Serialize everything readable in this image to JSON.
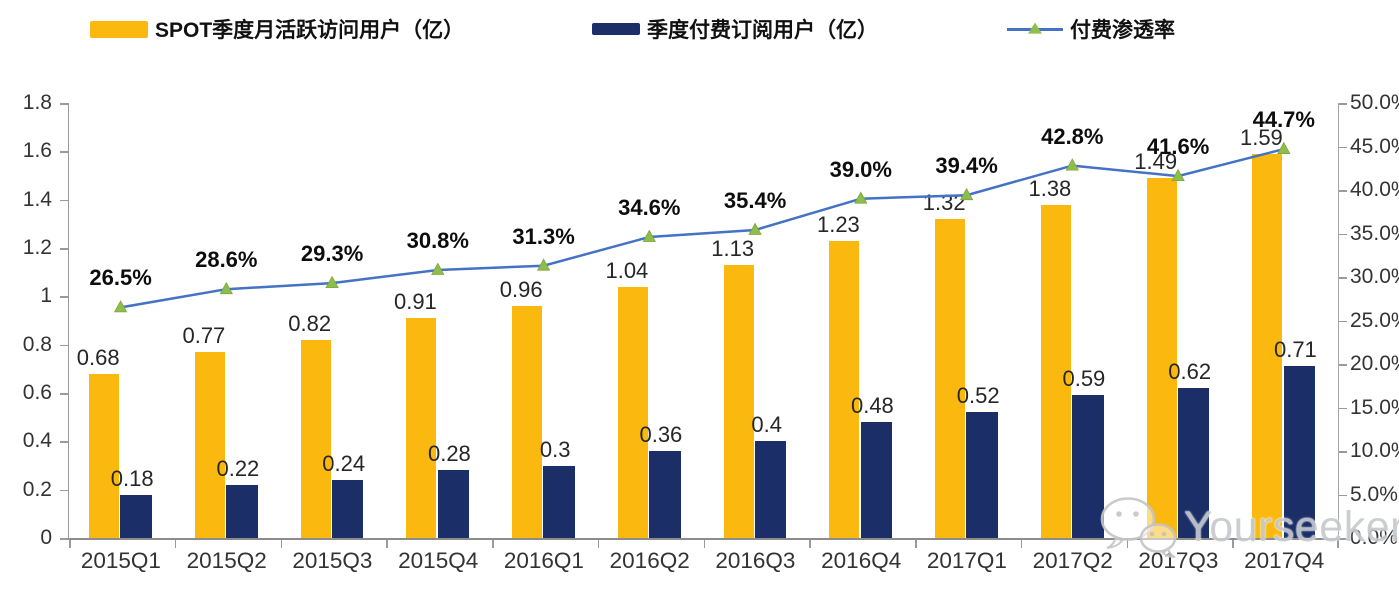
{
  "legend": {
    "items": [
      {
        "label": "SPOT季度月活跃访问用户（亿）",
        "swatch": "bar",
        "color": "#FBB90F"
      },
      {
        "label": "季度付费订阅用户（亿）",
        "swatch": "bar",
        "color": "#1B2E68"
      },
      {
        "label": "付费渗透率",
        "swatch": "line",
        "color": "#4472C4",
        "marker_color": "#8DBE4C"
      }
    ]
  },
  "chart_data": {
    "type": "bar",
    "subtype": "grouped-bar-with-line-combo",
    "title": "",
    "grid": false,
    "legend_position": "top",
    "categories": [
      "2015Q1",
      "2015Q2",
      "2015Q3",
      "2015Q4",
      "2016Q1",
      "2016Q2",
      "2016Q3",
      "2016Q4",
      "2017Q1",
      "2017Q2",
      "2017Q3",
      "2017Q4"
    ],
    "series": [
      {
        "name": "SPOT季度月活跃访问用户（亿）",
        "type": "bar",
        "axis": "left",
        "color": "#FBB90F",
        "values": [
          0.68,
          0.77,
          0.82,
          0.91,
          0.96,
          1.04,
          1.13,
          1.23,
          1.32,
          1.38,
          1.49,
          1.59
        ],
        "value_labels": [
          "0.68",
          "0.77",
          "0.82",
          "0.91",
          "0.96",
          "1.04",
          "1.13",
          "1.23",
          "1.32",
          "1.38",
          "1.49",
          "1.59"
        ]
      },
      {
        "name": "季度付费订阅用户（亿）",
        "type": "bar",
        "axis": "left",
        "color": "#1B2E68",
        "values": [
          0.18,
          0.22,
          0.24,
          0.28,
          0.3,
          0.36,
          0.4,
          0.48,
          0.52,
          0.59,
          0.62,
          0.71
        ],
        "value_labels": [
          "0.18",
          "0.22",
          "0.24",
          "0.28",
          "0.3",
          "0.36",
          "0.4",
          "0.48",
          "0.52",
          "0.59",
          "0.62",
          "0.71"
        ]
      },
      {
        "name": "付费渗透率",
        "type": "line",
        "axis": "right",
        "color": "#4472C4",
        "marker": "triangle",
        "marker_color": "#8DBE4C",
        "values": [
          26.5,
          28.6,
          29.3,
          30.8,
          31.3,
          34.6,
          35.4,
          39.0,
          39.4,
          42.8,
          41.6,
          44.7
        ],
        "value_labels": [
          "26.5%",
          "28.6%",
          "29.3%",
          "30.8%",
          "31.3%",
          "34.6%",
          "35.4%",
          "39.0%",
          "39.4%",
          "42.8%",
          "41.6%",
          "44.7%"
        ]
      }
    ],
    "left_axis": {
      "min": 0,
      "max": 1.8,
      "tick_labels": [
        "0",
        "0.2",
        "0.4",
        "0.6",
        "0.8",
        "1",
        "1.2",
        "1.4",
        "1.6",
        "1.8"
      ]
    },
    "right_axis": {
      "min": 0,
      "max": 50,
      "tick_labels": [
        "0.0%",
        "5.0%",
        "10.0%",
        "15.0%",
        "20.0%",
        "25.0%",
        "30.0%",
        "35.0%",
        "40.0%",
        "45.0%",
        "50.0%"
      ]
    }
  },
  "watermark": {
    "text": "Yourseeker",
    "icon": "wechat-icon"
  }
}
